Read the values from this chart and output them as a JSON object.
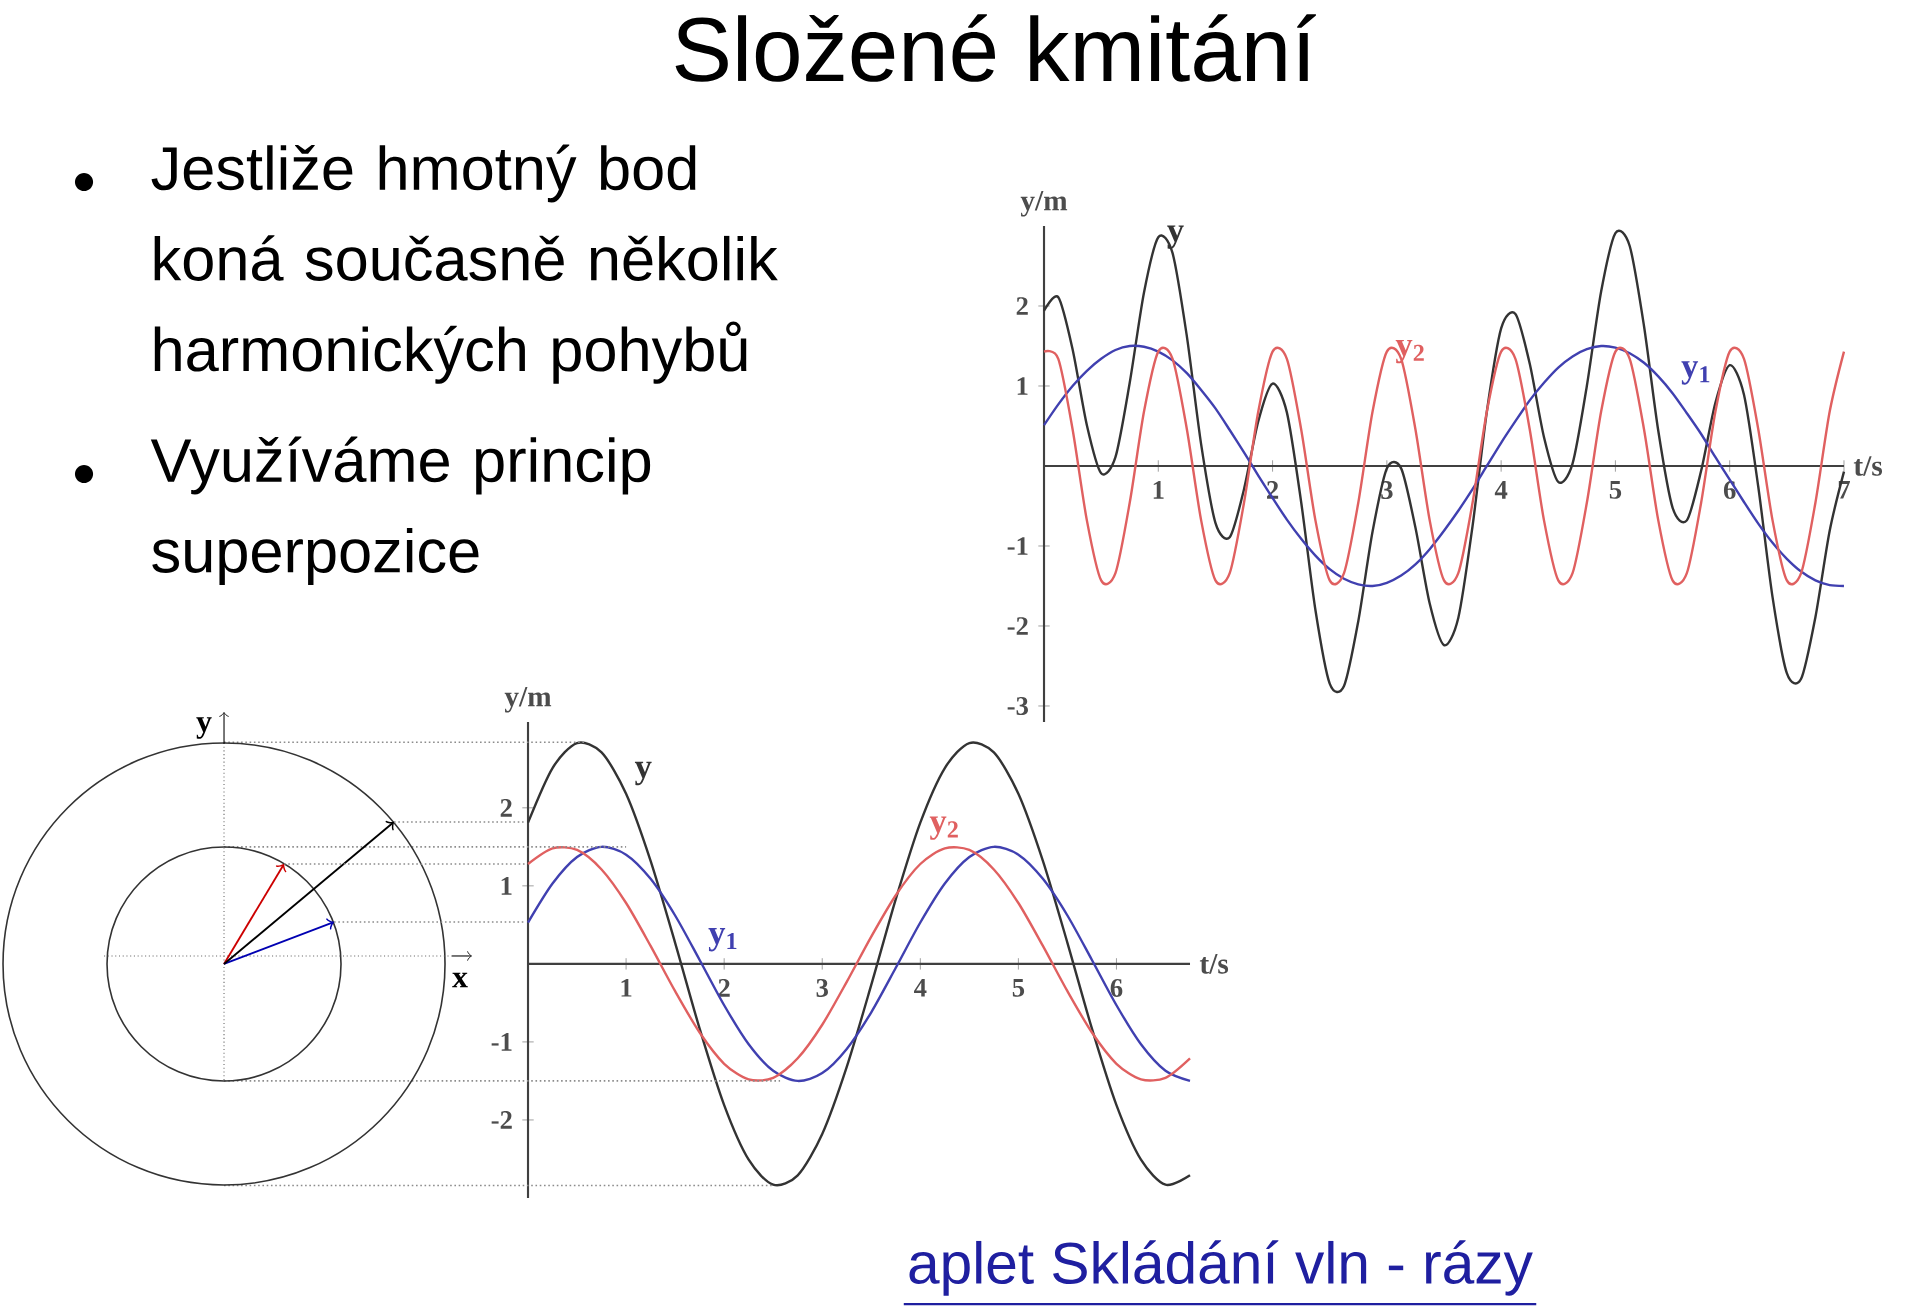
{
  "chart_data": [
    {
      "type": "line",
      "title": "Složené kmitání",
      "xlabel": "t/s",
      "ylabel": "y/m",
      "xlim": [
        0,
        7
      ],
      "ylim": [
        -3.2,
        3.0
      ],
      "xticks": [
        1,
        2,
        3,
        4,
        5,
        6,
        7
      ],
      "yticks": [
        -3,
        -2,
        -1,
        1,
        2
      ],
      "annotations": [
        "Jestliže hmotný bod koná současně několik harmonických pohybů",
        "Využíváme princip superpozice"
      ],
      "x": [
        0,
        0.125,
        0.25,
        0.375,
        0.5,
        0.625,
        0.75,
        0.875,
        1,
        1.125,
        1.25,
        1.375,
        1.5,
        1.625,
        1.75,
        1.875,
        2,
        2.125,
        2.25,
        2.375,
        2.5,
        2.625,
        2.75,
        2.875,
        3,
        3.125,
        3.25,
        3.375,
        3.5,
        3.625,
        3.75,
        3.875,
        4,
        4.125,
        4.25,
        4.375,
        4.5,
        4.625,
        4.75,
        4.875,
        5,
        5.125,
        5.25,
        5.375,
        5.5,
        5.625,
        5.75,
        5.875,
        6,
        6.125,
        6.25,
        6.375,
        6.5,
        6.625,
        6.75,
        6.875,
        7
      ],
      "series": [
        {
          "name": "y",
          "color": "#333333",
          "values": [
            1.94,
            2.11,
            1.46,
            0.51,
            -0.09,
            0.11,
            1.04,
            2.17,
            2.86,
            2.66,
            1.62,
            0.27,
            -0.71,
            -0.89,
            -0.29,
            0.56,
            1.03,
            0.67,
            -0.45,
            -1.8,
            -2.72,
            -2.75,
            -1.94,
            -0.82,
            -0.03,
            -0.03,
            -0.77,
            -1.72,
            -2.24,
            -1.9,
            -0.75,
            0.68,
            1.72,
            1.9,
            1.28,
            0.36,
            -0.2,
            0.03,
            1.0,
            2.18,
            2.91,
            2.75,
            1.75,
            0.44,
            -0.52,
            -0.68,
            -0.06,
            0.79,
            1.26,
            0.89,
            -0.26,
            -1.64,
            -2.59,
            -2.66,
            -1.89,
            -0.81,
            -0.07
          ]
        },
        {
          "name": "y$_{1}$",
          "color": "#4040b0",
          "values": [
            0.51,
            0.77,
            1.0,
            1.19,
            1.34,
            1.45,
            1.5,
            1.49,
            1.43,
            1.32,
            1.16,
            0.95,
            0.72,
            0.45,
            0.17,
            -0.12,
            -0.4,
            -0.67,
            -0.91,
            -1.12,
            -1.29,
            -1.41,
            -1.48,
            -1.5,
            -1.46,
            -1.37,
            -1.23,
            -1.04,
            -0.81,
            -0.56,
            -0.29,
            0.0,
            0.29,
            0.56,
            0.82,
            1.04,
            1.23,
            1.37,
            1.46,
            1.5,
            1.48,
            1.41,
            1.29,
            1.12,
            0.91,
            0.66,
            0.4,
            0.11,
            -0.17,
            -0.45,
            -0.72,
            -0.96,
            -1.16,
            -1.32,
            -1.43,
            -1.49,
            -1.5
          ]
        },
        {
          "name": "y$_{2}$",
          "color": "#e06060",
          "values": [
            1.43,
            1.34,
            0.46,
            -0.68,
            -1.43,
            -1.34,
            -0.46,
            0.68,
            1.43,
            1.34,
            0.46,
            -0.68,
            -1.43,
            -1.34,
            -0.46,
            0.68,
            1.43,
            1.34,
            0.46,
            -0.68,
            -1.43,
            -1.34,
            -0.46,
            0.68,
            1.43,
            1.34,
            0.46,
            -0.68,
            -1.43,
            -1.34,
            -0.46,
            0.68,
            1.43,
            1.34,
            0.46,
            -0.68,
            -1.43,
            -1.34,
            -0.46,
            0.68,
            1.43,
            1.34,
            0.46,
            -0.68,
            -1.43,
            -1.34,
            -0.46,
            0.68,
            1.43,
            1.34,
            0.46,
            -0.68,
            -1.43,
            -1.34,
            -0.46,
            0.68,
            1.43
          ]
        }
      ]
    },
    {
      "type": "line",
      "xlabel": "t/s",
      "ylabel": "y/m",
      "xlim": [
        0,
        6.75
      ],
      "ylim": [
        -3.0,
        3.1
      ],
      "xticks": [
        1,
        2,
        3,
        4,
        5,
        6
      ],
      "yticks": [
        -2,
        -1,
        1,
        2
      ],
      "annotations": [
        "x",
        "y",
        "aplet Skládání vln - rázy"
      ],
      "ref_lines": [
        {
          "axis": "y",
          "value": 2.84,
          "color": "#8c8c8c",
          "line_style": "dotted"
        },
        {
          "axis": "y",
          "value": 1.5,
          "color": "#8c8c8c",
          "line_style": "dotted"
        },
        {
          "axis": "y",
          "value": -1.5,
          "color": "#8c8c8c",
          "line_style": "dotted"
        },
        {
          "axis": "y",
          "value": -2.84,
          "color": "#8c8c8c",
          "line_style": "dotted"
        }
      ],
      "x": [
        0,
        0.25,
        0.5,
        0.75,
        1,
        1.25,
        1.5,
        1.75,
        2,
        2.25,
        2.5,
        2.75,
        3,
        3.25,
        3.5,
        3.75,
        4,
        4.25,
        4.5,
        4.75,
        5,
        5.25,
        5.5,
        5.75,
        6,
        6.25,
        6.5,
        6.75
      ],
      "series": [
        {
          "name": "y",
          "color": "#333333",
          "values": [
            1.81,
            2.51,
            2.83,
            2.71,
            2.18,
            1.32,
            0.27,
            -0.83,
            -1.81,
            -2.51,
            -2.83,
            -2.71,
            -2.18,
            -1.32,
            -0.27,
            0.83,
            1.81,
            2.51,
            2.83,
            2.71,
            2.18,
            1.32,
            0.27,
            -0.83,
            -1.81,
            -2.51,
            -2.83,
            -2.71
          ]
        },
        {
          "name": "y$_{1}$",
          "color": "#4040b0",
          "values": [
            0.53,
            1.03,
            1.37,
            1.5,
            1.4,
            1.09,
            0.62,
            0.05,
            -0.53,
            -1.03,
            -1.37,
            -1.5,
            -1.4,
            -1.09,
            -0.62,
            -0.05,
            0.53,
            1.03,
            1.37,
            1.5,
            1.4,
            1.09,
            0.62,
            0.05,
            -0.53,
            -1.03,
            -1.37,
            -1.5
          ]
        },
        {
          "name": "y$_{2}$",
          "color": "#e06060",
          "values": [
            1.28,
            1.48,
            1.46,
            1.21,
            0.78,
            0.23,
            -0.35,
            -0.88,
            -1.28,
            -1.48,
            -1.46,
            -1.21,
            -0.78,
            -0.23,
            0.35,
            0.88,
            1.28,
            1.48,
            1.46,
            1.21,
            0.78,
            0.23,
            -0.35,
            -0.88,
            -1.28,
            -1.48,
            -1.46,
            -1.21
          ]
        }
      ]
    }
  ]
}
